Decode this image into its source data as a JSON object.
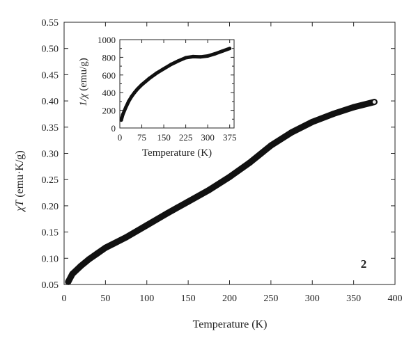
{
  "chart_data": [
    {
      "id": "main",
      "type": "scatter",
      "xlabel": "Temperature (K)",
      "ylabel_symbol": "χT",
      "ylabel_unit": " (emu·K/g)",
      "xlim": [
        0,
        400
      ],
      "ylim": [
        0.05,
        0.55
      ],
      "xticks": [
        0,
        50,
        100,
        150,
        200,
        250,
        300,
        350,
        400
      ],
      "yticks": [
        0.05,
        0.1,
        0.15,
        0.2,
        0.25,
        0.3,
        0.35,
        0.4,
        0.45,
        0.5,
        0.55
      ],
      "annotation": "2",
      "grid": false,
      "x": [
        5,
        10,
        20,
        30,
        40,
        50,
        60,
        75,
        100,
        125,
        150,
        175,
        200,
        225,
        250,
        275,
        300,
        325,
        350,
        375
      ],
      "y": [
        0.055,
        0.07,
        0.085,
        0.098,
        0.109,
        0.12,
        0.128,
        0.14,
        0.163,
        0.186,
        0.208,
        0.23,
        0.255,
        0.283,
        0.315,
        0.34,
        0.36,
        0.375,
        0.388,
        0.398
      ]
    },
    {
      "id": "inset",
      "type": "scatter",
      "xlabel": "Temperature (K)",
      "ylabel_symbol": "1/χ",
      "ylabel_unit": " (emu/g)",
      "xlim": [
        0,
        390
      ],
      "ylim": [
        0,
        1000
      ],
      "xticks": [
        0,
        75,
        150,
        225,
        300,
        375
      ],
      "yticks": [
        0,
        100,
        200,
        300,
        400,
        500,
        600,
        700,
        800,
        900,
        1000
      ],
      "ytick_labels": [
        0,
        200,
        400,
        600,
        800,
        1000
      ],
      "grid": false,
      "x": [
        5,
        10,
        20,
        30,
        40,
        50,
        60,
        75,
        100,
        125,
        150,
        175,
        200,
        225,
        250,
        275,
        300,
        325,
        350,
        375
      ],
      "y": [
        90,
        150,
        230,
        300,
        355,
        400,
        440,
        490,
        560,
        620,
        670,
        720,
        760,
        795,
        808,
        805,
        815,
        840,
        870,
        900
      ]
    }
  ]
}
